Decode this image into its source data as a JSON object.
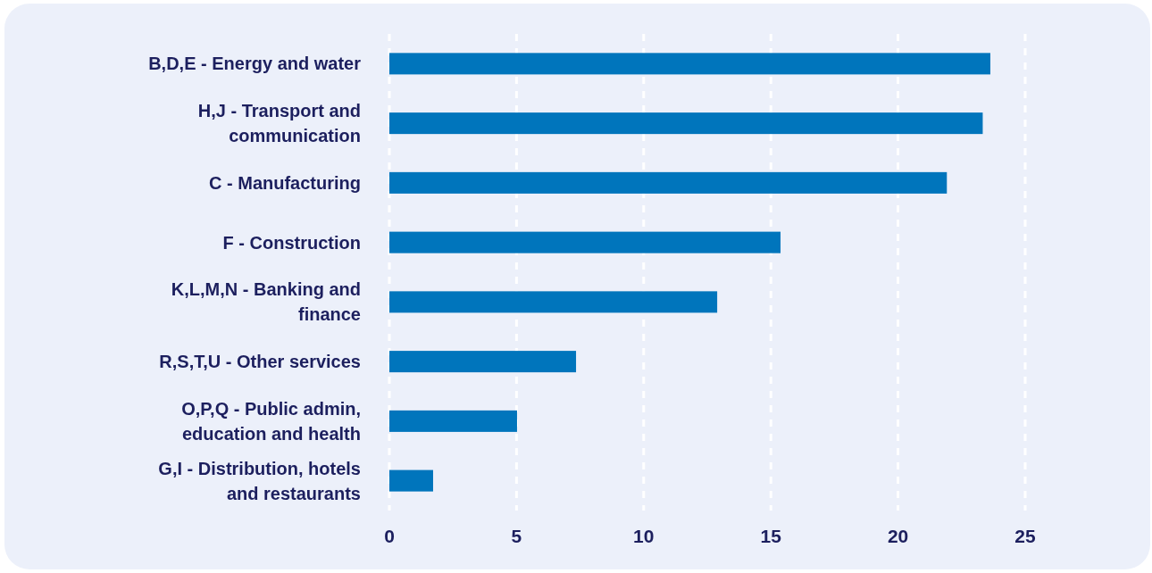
{
  "chart_data": {
    "type": "bar",
    "orientation": "horizontal",
    "categories": [
      "B,D,E - Energy and water",
      "H,J - Transport and communication",
      "C - Manufacturing",
      "F - Construction",
      "K,L,M,N - Banking and finance",
      "R,S,T,U - Other services",
      "O,P,Q - Public admin, education and health",
      "G,I - Distribution, hotels and restaurants"
    ],
    "values": [
      23.63,
      23.33,
      21.92,
      15.38,
      12.89,
      7.34,
      5.02,
      1.72
    ],
    "color": "#0075bc",
    "xlim": [
      0,
      25
    ],
    "xticks": [
      0,
      5,
      10,
      15,
      20,
      25
    ],
    "grid": "x"
  }
}
